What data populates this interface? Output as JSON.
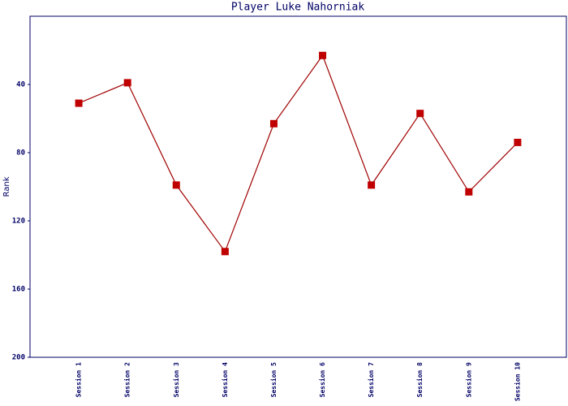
{
  "chart_data": {
    "type": "line",
    "title": "Player Luke Nahorniak",
    "y_label": "Rank",
    "categories": [
      "Session 1",
      "Session 2",
      "Session 3",
      "Session 4",
      "Session 5",
      "Session 6",
      "Session 7",
      "Session 8",
      "Session 9",
      "Session 10"
    ],
    "series": [
      {
        "name": "Rank",
        "color": "#a00000",
        "values": [
          51,
          39,
          99,
          138,
          63,
          23,
          99,
          57,
          103,
          74
        ]
      }
    ],
    "ylim": [
      200,
      0
    ],
    "yticks": [
      40,
      80,
      120,
      160,
      200
    ],
    "y_inverted": true
  }
}
